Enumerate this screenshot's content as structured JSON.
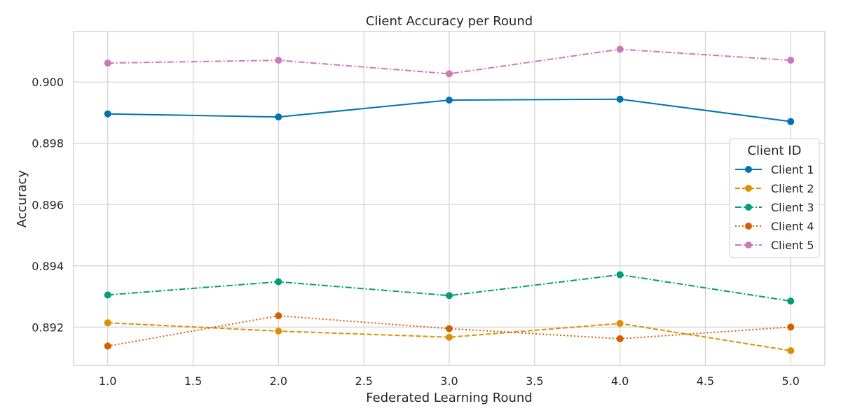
{
  "chart_data": {
    "type": "line",
    "title": "Client Accuracy per Round",
    "xlabel": "Federated Learning Round",
    "ylabel": "Accuracy",
    "xlim": [
      0.8,
      5.2
    ],
    "ylim": [
      0.89075,
      0.90165
    ],
    "x_ticks": [
      1.0,
      1.5,
      2.0,
      2.5,
      3.0,
      3.5,
      4.0,
      4.5,
      5.0
    ],
    "x_tick_labels": [
      "1.0",
      "1.5",
      "2.0",
      "2.5",
      "3.0",
      "3.5",
      "4.0",
      "4.5",
      "5.0"
    ],
    "y_ticks": [
      0.892,
      0.894,
      0.896,
      0.898,
      0.9
    ],
    "y_tick_labels": [
      "0.892",
      "0.894",
      "0.896",
      "0.898",
      "0.900"
    ],
    "grid": true,
    "legend": {
      "title": "Client ID",
      "placement": "right"
    },
    "x": [
      1,
      2,
      3,
      4,
      5
    ],
    "series": [
      {
        "name": "Client 1",
        "color": "#0173b2",
        "dash": "solid",
        "values": [
          0.89896,
          0.89886,
          0.89941,
          0.89944,
          0.89871
        ]
      },
      {
        "name": "Client 2",
        "color": "#de8f05",
        "dash": "dashed",
        "values": [
          0.89214,
          0.89187,
          0.89167,
          0.89212,
          0.89123
        ]
      },
      {
        "name": "Client 3",
        "color": "#029e73",
        "dash": "dashdot",
        "values": [
          0.89305,
          0.89348,
          0.89303,
          0.89371,
          0.89285
        ]
      },
      {
        "name": "Client 4",
        "color": "#d55e00",
        "dash": "dotted",
        "values": [
          0.89138,
          0.89237,
          0.89195,
          0.89162,
          0.892
        ]
      },
      {
        "name": "Client 5",
        "color": "#cc78bc",
        "dash": "dashdot",
        "values": [
          0.90062,
          0.90071,
          0.90027,
          0.90107,
          0.90071
        ]
      }
    ]
  }
}
